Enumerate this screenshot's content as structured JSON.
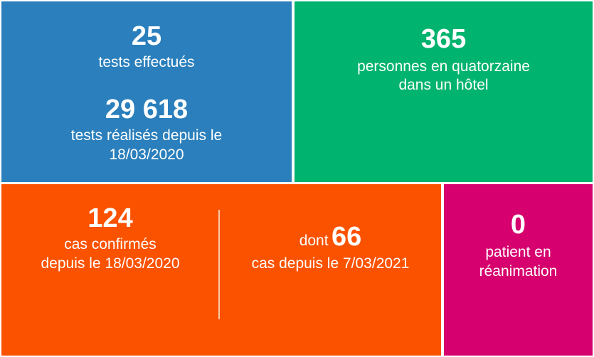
{
  "tests": {
    "count": "25",
    "count_label": "tests effectués",
    "total": "29 618",
    "total_label_line1": "tests réalisés depuis le",
    "total_label_line2": "18/03/2020",
    "color": "#2a7fbc"
  },
  "quarantine": {
    "count": "365",
    "label_line1": "personnes en quatorzaine",
    "label_line2": "dans un hôtel",
    "color": "#00b36e"
  },
  "cases": {
    "confirmed": "124",
    "confirmed_label_line1": "cas confirmés",
    "confirmed_label_line2": "depuis le 18/03/2020",
    "since_prefix": "dont",
    "since_count": "66",
    "since_label": "cas depuis le 7/03/2021",
    "color": "#fb5200"
  },
  "icu": {
    "count": "0",
    "label_line1": "patient en",
    "label_line2": "réanimation",
    "color": "#d6006e"
  }
}
